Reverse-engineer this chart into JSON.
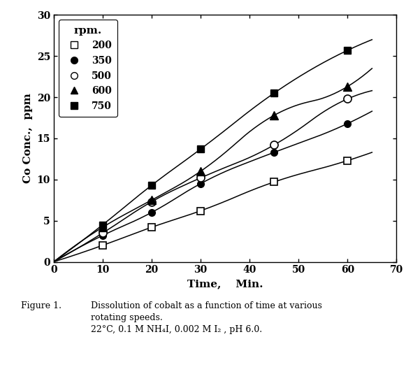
{
  "series": [
    {
      "label": "200",
      "marker": "s",
      "fillstyle": "none",
      "data_x": [
        10,
        20,
        30,
        45,
        60
      ],
      "data_y": [
        2.0,
        4.2,
        6.2,
        9.7,
        12.3
      ],
      "curve_x": [
        0,
        10,
        20,
        30,
        45,
        60,
        65
      ],
      "curve_y": [
        0,
        2.0,
        4.2,
        6.2,
        9.7,
        12.3,
        13.3
      ]
    },
    {
      "label": "350",
      "marker": "o",
      "fillstyle": "full",
      "data_x": [
        10,
        20,
        30,
        45,
        60
      ],
      "data_y": [
        3.2,
        6.0,
        9.5,
        13.3,
        16.8
      ],
      "curve_x": [
        0,
        10,
        20,
        30,
        45,
        60,
        65
      ],
      "curve_y": [
        0,
        3.2,
        6.0,
        9.5,
        13.3,
        16.8,
        18.3
      ]
    },
    {
      "label": "500",
      "marker": "o",
      "fillstyle": "none",
      "data_x": [
        10,
        20,
        30,
        45,
        60
      ],
      "data_y": [
        3.5,
        7.3,
        10.2,
        14.2,
        19.8
      ],
      "curve_x": [
        0,
        10,
        20,
        30,
        45,
        60,
        65
      ],
      "curve_y": [
        0,
        3.5,
        7.3,
        10.2,
        14.2,
        19.8,
        20.8
      ]
    },
    {
      "label": "600",
      "marker": "^",
      "fillstyle": "full",
      "data_x": [
        10,
        20,
        30,
        45,
        60
      ],
      "data_y": [
        4.2,
        7.5,
        11.0,
        17.8,
        21.3
      ],
      "curve_x": [
        0,
        10,
        20,
        30,
        45,
        60,
        65
      ],
      "curve_y": [
        0,
        4.2,
        7.5,
        11.0,
        17.8,
        21.3,
        23.5
      ]
    },
    {
      "label": "750",
      "marker": "s",
      "fillstyle": "full",
      "data_x": [
        10,
        20,
        30,
        45,
        60
      ],
      "data_y": [
        4.5,
        9.3,
        13.7,
        20.5,
        25.7
      ],
      "curve_x": [
        0,
        10,
        20,
        30,
        45,
        60,
        65
      ],
      "curve_y": [
        0,
        4.5,
        9.3,
        13.7,
        20.5,
        25.7,
        27.0
      ]
    }
  ],
  "xlabel": "Time,    Min.",
  "ylabel": "Co Conc.,  ppm",
  "xlim": [
    0,
    70
  ],
  "ylim": [
    0,
    30
  ],
  "xticks": [
    0,
    10,
    20,
    30,
    40,
    50,
    60,
    70
  ],
  "yticks": [
    0,
    5,
    10,
    15,
    20,
    25,
    30
  ],
  "legend_title": "rpm.",
  "marker_sizes": {
    "200": 7,
    "350": 7,
    "500": 8,
    "600": 8,
    "750": 7
  },
  "line_color": "#000000",
  "background_color": "#ffffff",
  "fig_caption_1": "Figure 1.",
  "fig_caption_2": "Dissolution of cobalt as a function of time at various\nrotating speeds.\n22°C, 0.1 M NH₄I, 0.002 M I₂ , pH 6.0."
}
